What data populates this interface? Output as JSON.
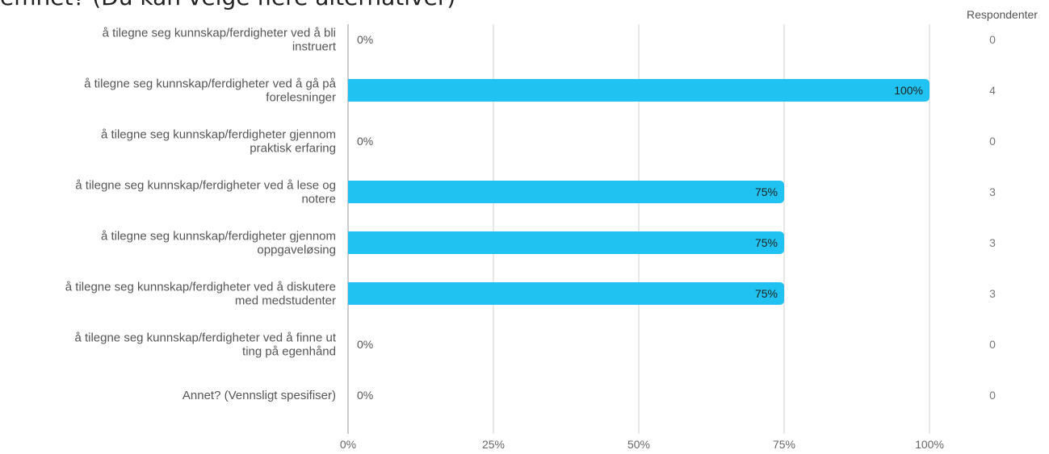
{
  "title": "emnet? (Du kan velge flere alternativer)",
  "respondents_header": "Respondenter",
  "colors": {
    "bar": "#1fc2f0",
    "grid": "#d0d0d0",
    "axis": "#9a9a9a"
  },
  "chart_data": {
    "type": "bar",
    "orientation": "horizontal",
    "categories": [
      [
        "å tilegne seg kunnskap/ferdigheter ved å bli",
        "instruert"
      ],
      [
        "å tilegne seg kunnskap/ferdigheter ved å gå på",
        "forelesninger"
      ],
      [
        "å tilegne seg kunnskap/ferdigheter gjennom",
        "praktisk erfaring"
      ],
      [
        "å tilegne seg kunnskap/ferdigheter ved å lese og",
        "notere"
      ],
      [
        "å tilegne seg kunnskap/ferdigheter gjennom",
        "oppgaveløsing"
      ],
      [
        "å tilegne seg kunnskap/ferdigheter ved å diskutere",
        "med medstudenter"
      ],
      [
        "å tilegne seg kunnskap/ferdigheter ved å finne ut",
        "ting på egenhånd"
      ],
      [
        "Annet? (Vennsligt spesifiser)"
      ]
    ],
    "values": [
      0,
      100,
      0,
      75,
      75,
      75,
      0,
      0
    ],
    "value_labels": [
      "0%",
      "100%",
      "0%",
      "75%",
      "75%",
      "75%",
      "0%",
      "0%"
    ],
    "respondents": [
      0,
      4,
      0,
      3,
      3,
      3,
      0,
      0
    ],
    "xlim": [
      0,
      100
    ],
    "xticks": [
      0,
      25,
      50,
      75,
      100
    ],
    "xtick_labels": [
      "0%",
      "25%",
      "50%",
      "75%",
      "100%"
    ],
    "grid": true
  }
}
